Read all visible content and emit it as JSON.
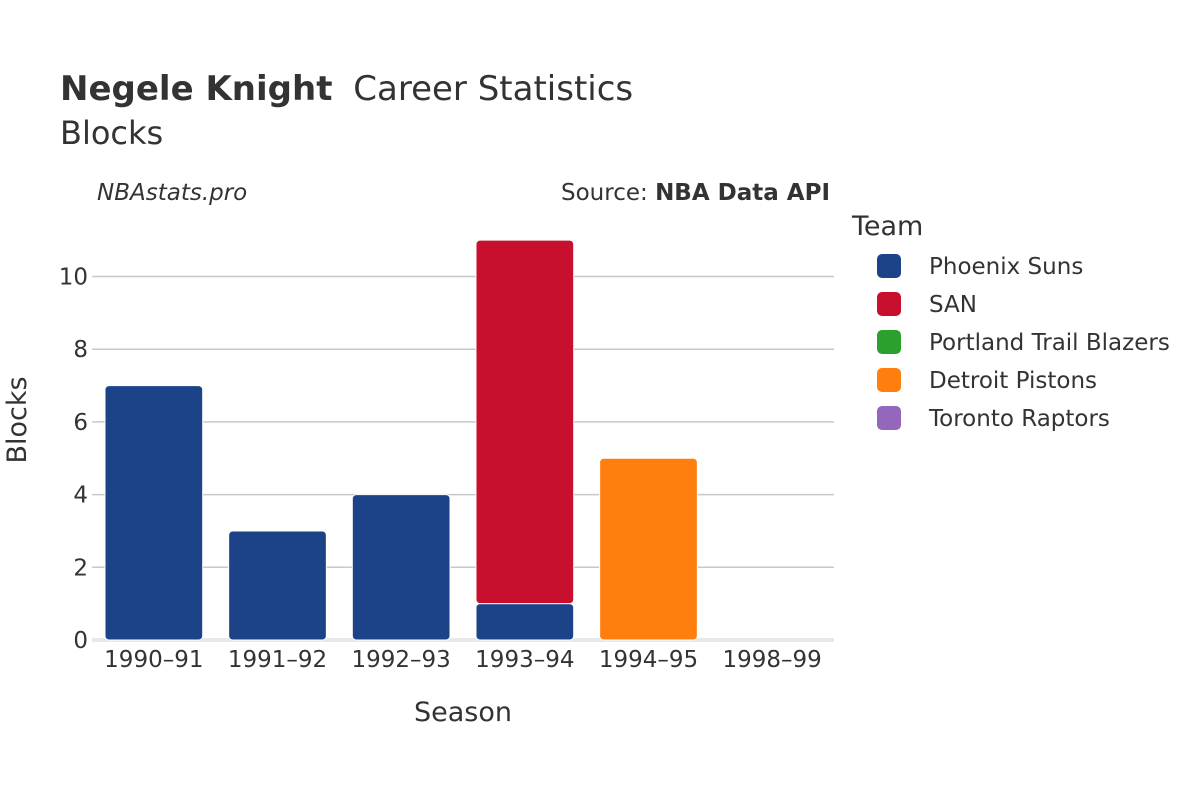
{
  "title": {
    "player": "Negele Knight",
    "suffix": "Career Statistics",
    "subtitle": "Blocks"
  },
  "watermark": "NBAstats.pro",
  "source": {
    "prefix": "Source: ",
    "name": "NBA Data API"
  },
  "legend": {
    "title": "Team"
  },
  "chart_data": {
    "type": "bar",
    "stacked": true,
    "categories": [
      "1990–91",
      "1991–92",
      "1992–93",
      "1993–94",
      "1994–95",
      "1998–99"
    ],
    "series": [
      {
        "name": "Phoenix Suns",
        "color": "#1c4288",
        "values": [
          7,
          3,
          4,
          1,
          0,
          0
        ]
      },
      {
        "name": "SAN",
        "color": "#c8102e",
        "values": [
          0,
          0,
          0,
          10,
          0,
          0
        ]
      },
      {
        "name": "Portland Trail Blazers",
        "color": "#2ca02c",
        "values": [
          0,
          0,
          0,
          0,
          0,
          0
        ]
      },
      {
        "name": "Detroit Pistons",
        "color": "#ff7f0e",
        "values": [
          0,
          0,
          0,
          0,
          5,
          0
        ]
      },
      {
        "name": "Toronto Raptors",
        "color": "#9467bd",
        "values": [
          0,
          0,
          0,
          0,
          0,
          0
        ]
      }
    ],
    "xlabel": "Season",
    "ylabel": "Blocks",
    "ylim": [
      0,
      11.5
    ],
    "yticks": [
      0,
      2,
      4,
      6,
      8,
      10
    ],
    "grid": true,
    "legend_position": "right"
  }
}
